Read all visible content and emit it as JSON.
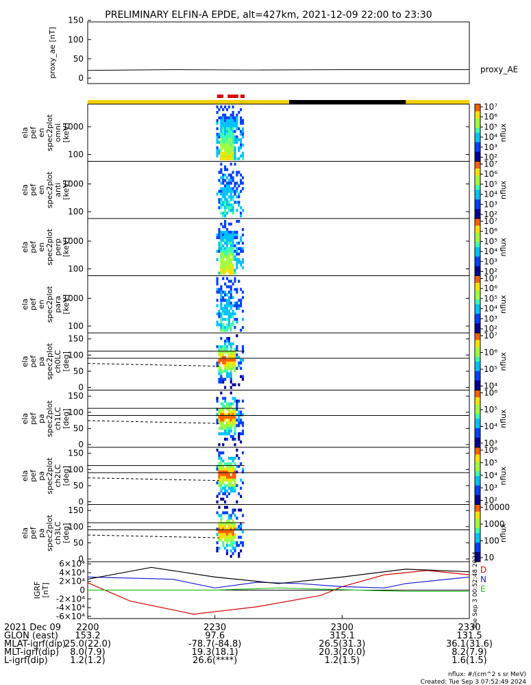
{
  "title": "PRELIMINARY ELFIN-A EPDE, alt=427km, 2021-12-09 22:00 to 23:30",
  "colors": {
    "red": "#d40000",
    "gold": "#f2d000",
    "black": "#000000",
    "blue": "#1c1cd6",
    "green": "#20c020"
  },
  "chart_data": [
    {
      "type": "line",
      "ylabel": "proxy_ae [nT]",
      "yticks": [
        "0",
        "50",
        "100",
        "150"
      ],
      "ylim": [
        0,
        160
      ],
      "series": [
        {
          "name": "proxy_AE",
          "x": [
            0,
            20,
            40,
            60,
            90
          ],
          "y": [
            20,
            22,
            21,
            22,
            22
          ]
        }
      ]
    },
    {
      "type": "heatmap",
      "ylabel": [
        "ela",
        "pef",
        "en",
        "spec2plot",
        "omni",
        "[keV]"
      ],
      "ytick_labels": [
        "100",
        "1000"
      ],
      "colorbar": {
        "label": "nflux",
        "tick_labels": [
          "10²",
          "10³",
          "10⁴",
          "10⁵",
          "10⁶",
          "10⁷"
        ]
      }
    },
    {
      "type": "heatmap",
      "ylabel": [
        "ela",
        "pef",
        "en",
        "spec2plot",
        "anti",
        "[keV]"
      ],
      "ytick_labels": [
        "100",
        "1000"
      ],
      "colorbar": {
        "label": "nflux",
        "tick_labels": [
          "10²",
          "10³",
          "10⁴",
          "10⁵",
          "10⁶",
          "10⁷"
        ]
      }
    },
    {
      "type": "heatmap",
      "ylabel": [
        "ela",
        "pef",
        "en",
        "spec2plot",
        "perp",
        "[keV]"
      ],
      "ytick_labels": [
        "100",
        "1000"
      ],
      "colorbar": {
        "label": "nflux",
        "tick_labels": [
          "10²",
          "10³",
          "10⁴",
          "10⁵",
          "10⁶",
          "10⁷"
        ]
      }
    },
    {
      "type": "heatmap",
      "ylabel": [
        "ela",
        "pef",
        "en",
        "spec2plot",
        "para",
        "[keV]"
      ],
      "ytick_labels": [
        "100",
        "1000"
      ],
      "colorbar": {
        "label": "nflux",
        "tick_labels": [
          "10²",
          "10³",
          "10⁴",
          "10⁵",
          "10⁶",
          "10⁷"
        ]
      }
    },
    {
      "type": "heatmap",
      "ylabel": [
        "ela",
        "pef",
        "pa",
        "spec2plot",
        "ch0LC",
        "[deg]"
      ],
      "ytick_labels": [
        "0",
        "50",
        "100",
        "150"
      ],
      "colorbar": {
        "label": "nflux",
        "tick_labels": [
          "10⁴",
          "10⁵",
          "10⁶",
          "10⁷"
        ]
      }
    },
    {
      "type": "heatmap",
      "ylabel": [
        "ela",
        "pef",
        "pa",
        "spec2plot",
        "ch1LC",
        "[deg]"
      ],
      "ytick_labels": [
        "0",
        "50",
        "100",
        "150"
      ],
      "colorbar": {
        "label": "nflux",
        "tick_labels": [
          "10³",
          "10⁴",
          "10⁵",
          "10⁶"
        ]
      }
    },
    {
      "type": "heatmap",
      "ylabel": [
        "ela",
        "pef",
        "pa",
        "spec2plot",
        "ch2LC",
        "[deg]"
      ],
      "ytick_labels": [
        "0",
        "50",
        "100",
        "150"
      ],
      "colorbar": {
        "label": "nflux",
        "tick_labels": [
          "10²",
          "10³",
          "10⁴",
          "10⁵",
          "10⁶"
        ]
      }
    },
    {
      "type": "heatmap",
      "ylabel": [
        "ela",
        "pef",
        "pa",
        "spec2plot",
        "ch3LC",
        "[deg]"
      ],
      "ytick_labels": [
        "0",
        "50",
        "100",
        "150"
      ],
      "colorbar": {
        "label": "nflux",
        "tick_labels": [
          "10",
          "100",
          "1000",
          "10000"
        ]
      }
    },
    {
      "type": "line",
      "ylabel": [
        "IGRF",
        "[nT]"
      ],
      "ytick_labels": [
        "-6×10⁴",
        "-4×10⁴",
        "-2×10⁴",
        "0",
        "2×10⁴",
        "4×10⁴",
        "6×10⁴"
      ],
      "ylim": [
        -65000,
        65000
      ],
      "legend": [
        "D",
        "N",
        "E"
      ],
      "series": [
        {
          "name": "D",
          "x": [
            0,
            10,
            25,
            40,
            55,
            60,
            70,
            80,
            90
          ],
          "y": [
            17000,
            -25000,
            -55000,
            -38000,
            -12000,
            8000,
            35000,
            45000,
            35000
          ]
        },
        {
          "name": "N",
          "x": [
            0,
            20,
            30,
            40,
            50,
            60,
            70,
            75,
            90
          ],
          "y": [
            30000,
            25000,
            5000,
            18000,
            15000,
            8000,
            5000,
            15000,
            30000
          ]
        },
        {
          "name": "E",
          "x": [
            0,
            30,
            45,
            60,
            75,
            90
          ],
          "y": [
            0,
            0,
            5000,
            1000,
            -3000,
            -3000
          ]
        },
        {
          "name": "black",
          "x": [
            0,
            15,
            30,
            45,
            60,
            75,
            90
          ],
          "y": [
            25000,
            52000,
            30000,
            15000,
            30000,
            48000,
            42000
          ]
        }
      ]
    }
  ],
  "xaxis": {
    "tick_labels": [
      "2200",
      "2230",
      "2300",
      "2330"
    ]
  },
  "ephemeris": [
    {
      "label": "2021 Dec 09",
      "values": [
        "2200",
        "2230",
        "2300",
        "2330"
      ]
    },
    {
      "label": "GLON (east)",
      "values": [
        "153.2",
        "97.6",
        "315.1",
        "131.5"
      ]
    },
    {
      "label": "MLAT-igrf(dip)",
      "values": [
        "25.0(22.0)",
        "-78.7(-84.8)",
        "26.5(31.3)",
        "36.1(31.6)"
      ]
    },
    {
      "label": "MLT-igrf(dip)",
      "values": [
        "8.0(7.9)",
        "19.3(18.1)",
        "20.3(20.0)",
        "8.2(7.9)"
      ]
    },
    {
      "label": "L-igrf(dip)",
      "values": [
        "1.2(1.2)",
        "26.6(****)",
        "1.2(1.5)",
        "1.6(1.5)"
      ]
    }
  ],
  "footer": {
    "units": "nflux: #/(cm^2 s sr MeV)",
    "created": "Created: Tue Sep  3 07:52:49 2024",
    "vertical_stamp": "Tue Sep  3 00:52:48 2024"
  }
}
